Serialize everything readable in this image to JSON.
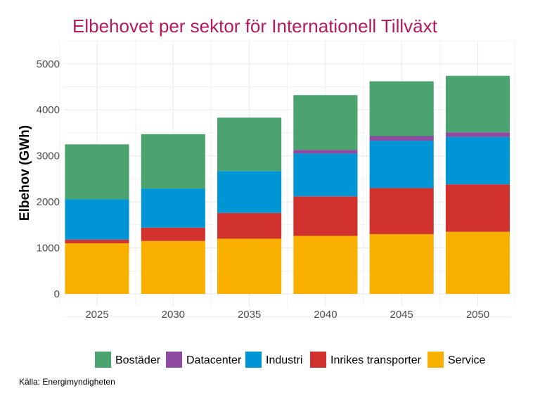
{
  "title": "Elbehovet per sektor för Internationell Tillväxt",
  "caption": "Källa: Energimyndigheten",
  "colors": {
    "title": "#B5195F",
    "grid": "#EBEBEB",
    "axis_text": "#4D4D4D"
  },
  "chart_data": {
    "type": "bar",
    "stacked": true,
    "categories": [
      "2025",
      "2030",
      "2035",
      "2040",
      "2045",
      "2050"
    ],
    "ylabel": "Elbehov (GWh)",
    "xlabel": "",
    "ylim": [
      0,
      5500
    ],
    "yticks": [
      0,
      1000,
      2000,
      3000,
      4000,
      5000
    ],
    "grid": true,
    "legend_position": "bottom",
    "series": [
      {
        "name": "Service",
        "color": "#F9B000",
        "values": [
          1100,
          1150,
          1200,
          1260,
          1300,
          1350
        ]
      },
      {
        "name": "Inrikes transporter",
        "color": "#D2322D",
        "values": [
          80,
          290,
          560,
          860,
          1000,
          1030
        ]
      },
      {
        "name": "Industri",
        "color": "#0096D6",
        "values": [
          880,
          850,
          910,
          930,
          1030,
          1030
        ]
      },
      {
        "name": "Datacenter",
        "color": "#8E4AA0",
        "values": [
          0,
          0,
          0,
          80,
          100,
          100
        ]
      },
      {
        "name": "Bostäder",
        "color": "#4BA36F",
        "values": [
          1190,
          1180,
          1160,
          1190,
          1190,
          1230
        ]
      }
    ],
    "legend_order": [
      "Bostäder",
      "Datacenter",
      "Industri",
      "Inrikes transporter",
      "Service"
    ]
  }
}
